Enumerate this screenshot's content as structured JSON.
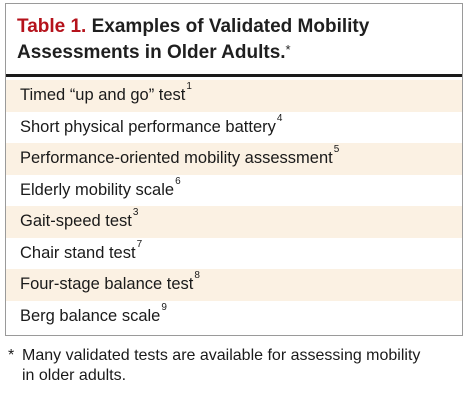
{
  "table": {
    "label": "Table 1.",
    "title": "Examples of Validated Mobility Assessments in Older Adults.",
    "title_marker": "*",
    "rows": [
      {
        "text": "Timed “up and go” test",
        "ref": "1"
      },
      {
        "text": "Short physical performance battery",
        "ref": "4"
      },
      {
        "text": "Performance-oriented mobility assessment",
        "ref": "5"
      },
      {
        "text": "Elderly mobility scale",
        "ref": "6"
      },
      {
        "text": "Gait-speed test",
        "ref": "3"
      },
      {
        "text": "Chair stand test",
        "ref": "7"
      },
      {
        "text": "Four-stage balance test",
        "ref": "8"
      },
      {
        "text": "Berg balance scale",
        "ref": "9"
      }
    ],
    "colors": {
      "label": "#b5121b",
      "shaded_row": "#fbf1e3"
    }
  },
  "footnote": {
    "marker": "*",
    "line1": "Many validated tests are available for assessing mobility",
    "line2": "in older adults."
  }
}
